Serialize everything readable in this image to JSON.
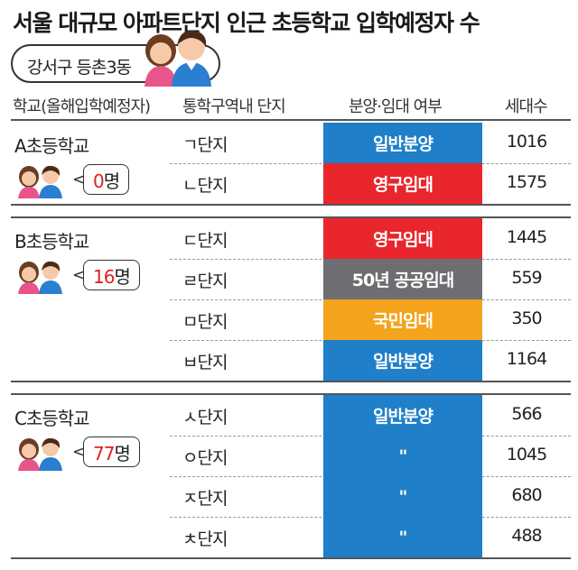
{
  "title": "서울 대규모 아파트단지 인근 초등학교 입학예정자 수",
  "district": "강서구 등촌3동",
  "colors": {
    "일반분양": "#1f7fc9",
    "영구임대": "#e8262b",
    "50년 공공임대": "#6d6e71",
    "국민임대": "#f4a31c",
    "same": "#1f7fc9"
  },
  "chart_data": {
    "type": "table",
    "columns": [
      "학교(올해입학예정자)",
      "통학구역내 단지",
      "분양·임대 여부",
      "세대수"
    ],
    "schools": [
      {
        "name": "A초등학교",
        "count": "0",
        "count_unit": "명",
        "rows": [
          {
            "complex": "ㄱ단지",
            "type": "일반분양",
            "units": 1016
          },
          {
            "complex": "ㄴ단지",
            "type": "영구임대",
            "units": 1575
          }
        ]
      },
      {
        "name": "B초등학교",
        "count": "16",
        "count_unit": "명",
        "rows": [
          {
            "complex": "ㄷ단지",
            "type": "영구임대",
            "units": 1445
          },
          {
            "complex": "ㄹ단지",
            "type": "50년 공공임대",
            "units": 559
          },
          {
            "complex": "ㅁ단지",
            "type": "국민임대",
            "units": 350
          },
          {
            "complex": "ㅂ단지",
            "type": "일반분양",
            "units": 1164
          }
        ]
      },
      {
        "name": "C초등학교",
        "count": "77",
        "count_unit": "명",
        "rows": [
          {
            "complex": "ㅅ단지",
            "type": "일반분양",
            "units": 566
          },
          {
            "complex": "ㅇ단지",
            "type": "\"",
            "units": 1045
          },
          {
            "complex": "ㅈ단지",
            "type": "\"",
            "units": 680
          },
          {
            "complex": "ㅊ단지",
            "type": "\"",
            "units": 488
          }
        ]
      }
    ]
  }
}
